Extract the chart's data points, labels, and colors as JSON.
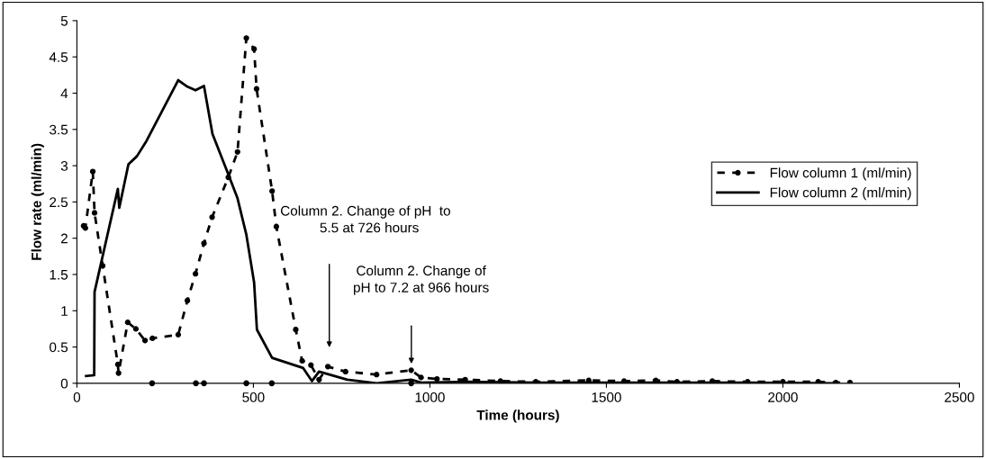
{
  "chart_data": {
    "type": "line",
    "xlabel": "Time (hours)",
    "ylabel": "Flow rate (ml/min)",
    "xlim": [
      0,
      2500
    ],
    "xticks": [
      0,
      500,
      1000,
      1500,
      2000,
      2500
    ],
    "ylim": [
      0,
      5
    ],
    "yticks": [
      0,
      0.5,
      1,
      1.5,
      2,
      2.5,
      3,
      3.5,
      4,
      4.5,
      5
    ],
    "grid": false,
    "legend": "center right",
    "series": [
      {
        "name": "Flow column 1 (ml/min)",
        "color": "#000000",
        "line_style": "dashed",
        "marker": "circle",
        "x": [
          19,
          24,
          45,
          50,
          73,
          116,
          118,
          144,
          167,
          193,
          214,
          287,
          313,
          336,
          360,
          383,
          429,
          455,
          480,
          502,
          509,
          553,
          565,
          620,
          638,
          663,
          686,
          711,
          761,
          849,
          947,
          975,
          1020,
          1100,
          1200,
          1300,
          1450,
          1550,
          1640,
          1700,
          1800,
          1900,
          2000,
          2100,
          2150,
          2190
        ],
        "values": [
          2.17,
          2.14,
          2.92,
          2.35,
          1.62,
          0.26,
          0.14,
          0.84,
          0.75,
          0.59,
          0.62,
          0.67,
          1.14,
          1.51,
          1.93,
          2.29,
          2.84,
          3.19,
          4.76,
          4.61,
          4.06,
          2.65,
          2.16,
          0.74,
          0.31,
          0.25,
          0.05,
          0.23,
          0.16,
          0.12,
          0.18,
          0.08,
          0.06,
          0.05,
          0.03,
          0.02,
          0.04,
          0.03,
          0.04,
          0.02,
          0.03,
          0.02,
          0.02,
          0.02,
          0.01,
          0.01
        ]
      },
      {
        "name": "Flow column 2 (ml/min)",
        "color": "#000000",
        "line_style": "solid",
        "marker": "none",
        "x": [
          26,
          49,
          50,
          116,
          120,
          146,
          170,
          197,
          287,
          313,
          336,
          360,
          384,
          425,
          455,
          480,
          502,
          510,
          553,
          641,
          666,
          686,
          766,
          849,
          947,
          975,
          1100,
          1300,
          1600,
          1900,
          2150
        ],
        "values": [
          0.1,
          0.11,
          1.26,
          2.68,
          2.42,
          3.02,
          3.13,
          3.34,
          4.18,
          4.09,
          4.04,
          4.1,
          3.44,
          2.93,
          2.55,
          2.05,
          1.39,
          0.74,
          0.35,
          0.21,
          0.03,
          0.16,
          0.05,
          0,
          0.05,
          0.01,
          0.02,
          0.01,
          0.01,
          0.01,
          0
        ]
      },
      {
        "type": "scatter",
        "color": "#000000",
        "marker": "circle",
        "x": [
          213,
          337,
          360,
          480,
          552,
          947
        ],
        "values": [
          0,
          0,
          0,
          0,
          0,
          0
        ]
      }
    ],
    "annotations": [
      "Column 2. Change of pH  to\n  5.5 at 726 hours",
      "Column 2. Change of\npH to 7.2 at 966 hours"
    ]
  }
}
